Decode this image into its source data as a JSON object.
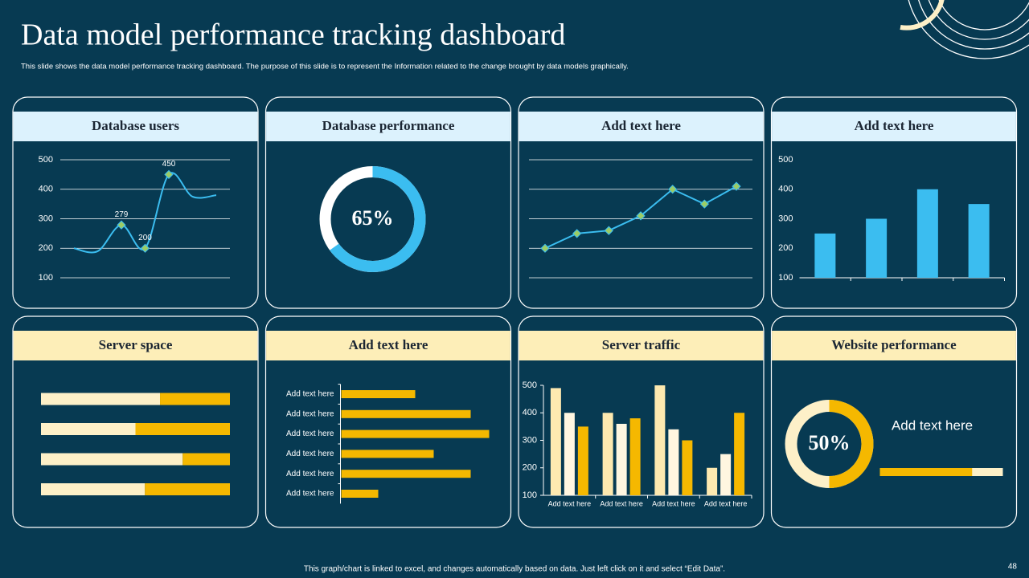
{
  "title": "Data model performance tracking dashboard",
  "subtitle": "This slide shows the data model  performance tracking dashboard. The purpose of this slide is to represent the Information  related to the change brought by data models graphically.",
  "footer": "This graph/chart is linked to excel, and changes automatically based on data. Just left click on it and select “Edit Data”.",
  "page_number": "48",
  "chart_data": [
    {
      "type": "line",
      "title": "Database users",
      "smooth": true,
      "color": "#3bbdf0",
      "categories": [
        null,
        null,
        null,
        null,
        null,
        null,
        null
      ],
      "values": [
        200,
        190,
        279,
        200,
        450,
        375,
        380
      ],
      "value_labels": [
        null,
        null,
        "279",
        "200",
        "450",
        null,
        null
      ],
      "ylim": [
        100,
        500
      ],
      "yticks": [
        100,
        200,
        300,
        400,
        500
      ],
      "grid": true
    },
    {
      "type": "donut",
      "title": "Database performance",
      "values": [
        65
      ],
      "value_labels": [
        "65%"
      ],
      "color": "#3bbdf0",
      "track_color": "#ffffff"
    },
    {
      "type": "line",
      "title": "Add text here",
      "smooth": false,
      "markers": true,
      "color": "#3bbdf0",
      "categories": [
        null,
        null,
        null,
        null,
        null,
        null,
        null
      ],
      "values": [
        200,
        250,
        260,
        310,
        400,
        350,
        410
      ],
      "ylim": [
        100,
        500
      ],
      "yticks": [
        100,
        200,
        300,
        400,
        500
      ],
      "tick_labels": false,
      "grid": true
    },
    {
      "type": "bar",
      "title": "Add text here",
      "color": "#3bbdf0",
      "categories": [
        null,
        null,
        null,
        null
      ],
      "values": [
        250,
        300,
        400,
        350
      ],
      "ylim": [
        100,
        500
      ],
      "yticks": [
        100,
        200,
        300,
        400,
        500
      ]
    },
    {
      "type": "stacked",
      "title": "Server space",
      "xlim": [
        0,
        100
      ],
      "series": [
        {
          "color": "#fdf0c8",
          "values": [
            63,
            50,
            75,
            55
          ]
        },
        {
          "color": "#f5b800",
          "values": [
            37,
            50,
            25,
            45
          ]
        }
      ]
    },
    {
      "type": "barh",
      "title": "Add text here",
      "color": "#f5b800",
      "xlim": [
        0,
        100
      ],
      "categories": [
        "Add text here",
        "Add text here",
        "Add text here",
        "Add text here",
        "Add text here",
        "Add text here"
      ],
      "values": [
        40,
        70,
        80,
        50,
        70,
        20
      ]
    },
    {
      "type": "grouped",
      "title": "Server traffic",
      "categories": [
        "Add text here",
        "Add text here",
        "Add text here",
        "Add text here"
      ],
      "series": [
        {
          "color": "#fde9b0",
          "values": [
            490,
            400,
            500,
            200
          ]
        },
        {
          "color": "#fff6e0",
          "values": [
            400,
            360,
            340,
            250
          ]
        },
        {
          "color": "#f5b800",
          "values": [
            350,
            380,
            300,
            400
          ]
        }
      ],
      "ylim": [
        100,
        500
      ],
      "yticks": [
        100,
        200,
        300,
        400,
        500
      ]
    },
    {
      "type": "donut",
      "title": "Website performance",
      "values": [
        50
      ],
      "value_labels": [
        "50%"
      ],
      "color": "#f5b800",
      "track_color": "#fdf0c8",
      "note": "Add text here",
      "progress": 75
    }
  ]
}
